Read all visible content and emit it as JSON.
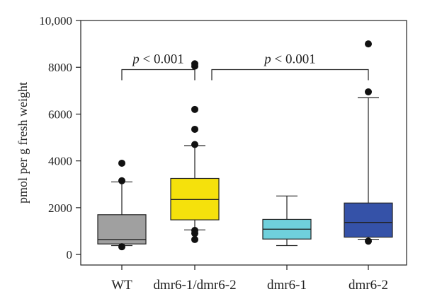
{
  "chart_data": {
    "type": "box",
    "title": "",
    "xlabel": "",
    "ylabel": "pmol per g fresh weight",
    "ylim": [
      -450,
      10000
    ],
    "yticks": [
      0,
      2000,
      4000,
      6000,
      8000,
      10000
    ],
    "ytick_labels": [
      "0",
      "2000",
      "4000",
      "6000",
      "8000",
      "10,000"
    ],
    "categories": [
      "WT",
      "dmr6-1/dmr6-2",
      "dmr6-1",
      "dmr6-2"
    ],
    "boxes": [
      {
        "category": "WT",
        "color": "#a0a0a0",
        "whisker_low": 380,
        "q1": 450,
        "median": 640,
        "q3": 1700,
        "whisker_high": 3100,
        "outliers": [
          330,
          3150,
          3900
        ]
      },
      {
        "category": "dmr6-1/dmr6-2",
        "color": "#f5e10c",
        "whisker_low": 1050,
        "q1": 1480,
        "median": 2350,
        "q3": 3250,
        "whisker_high": 4650,
        "outliers": [
          640,
          900,
          1030,
          4700,
          5350,
          6200,
          8050,
          8150
        ]
      },
      {
        "category": "dmr6-1",
        "color": "#6fd0dc",
        "whisker_low": 380,
        "q1": 660,
        "median": 1080,
        "q3": 1500,
        "whisker_high": 2500,
        "outliers": []
      },
      {
        "category": "dmr6-2",
        "color": "#3552a8",
        "whisker_low": 650,
        "q1": 740,
        "median": 1370,
        "q3": 2200,
        "whisker_high": 6700,
        "outliers": [
          570,
          6950,
          9000
        ]
      }
    ],
    "annotations": [
      {
        "from": "WT",
        "to": "dmr6-1/dmr6-2",
        "text": "p < 0.001",
        "y": 7900
      },
      {
        "from": "dmr6-1/dmr6-2",
        "to": "dmr6-2",
        "text": "p < 0.001",
        "y": 7900
      }
    ],
    "grid": false,
    "legend": "none"
  }
}
